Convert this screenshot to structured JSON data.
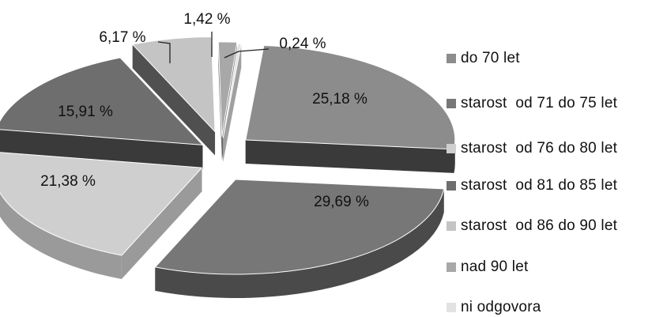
{
  "chart_data": {
    "type": "pie",
    "title": "",
    "variant": "3d-exploded",
    "categories": [
      "do 70 let",
      "starost  od 71 do 75 let",
      "starost  od 76 do 80 let",
      "starost  od 81 do 85 let",
      "starost  od 86 do 90 let",
      "nad 90 let",
      "ni odgovora"
    ],
    "values": [
      25.18,
      29.69,
      21.38,
      15.91,
      6.17,
      1.42,
      0.24
    ],
    "data_labels": [
      "25,18 %",
      "29,69 %",
      "21,38 %",
      "15,91 %",
      "6,17 %",
      "1,42 %",
      "0,24 %"
    ],
    "colors": [
      "#8c8c8c",
      "#777777",
      "#cfcfcf",
      "#6e6e6e",
      "#c4c4c4",
      "#a8a8a8",
      "#e2e2e2"
    ],
    "side_colors": [
      "#3a3a3a",
      "#4a4a4a",
      "#9a9a9a",
      "#3a3a3a",
      "#505050",
      "#666666",
      "#a0a0a0"
    ],
    "legend_position": "right"
  }
}
